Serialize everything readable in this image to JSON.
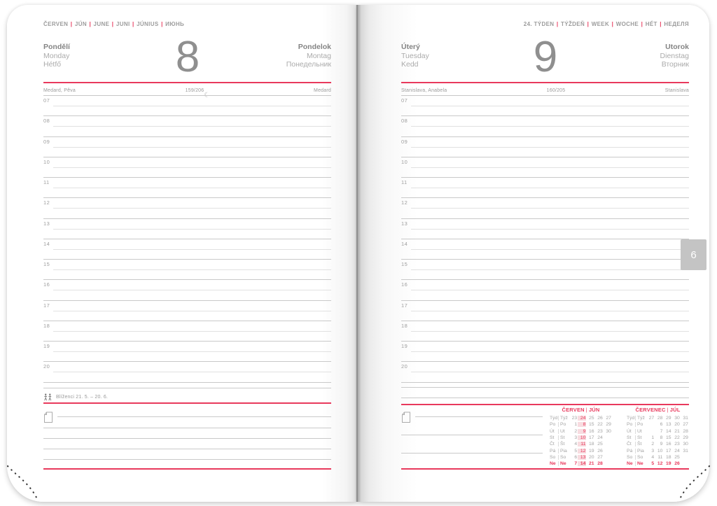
{
  "colors": {
    "accent": "#e8395c",
    "calendar_highlight_bg": "#f8dce0",
    "tab_bg": "#c4c4c4"
  },
  "page_tab": {
    "label": "6"
  },
  "left_page": {
    "months": [
      "ČERVEN",
      "JÚN",
      "JUNE",
      "JUNI",
      "JÚNIUS",
      "ИЮНЬ"
    ],
    "day": {
      "names_left": [
        "Pondělí",
        "Monday",
        "Hétfő"
      ],
      "number": "8",
      "moon_symbol": "☾",
      "names_right": [
        "Pondelok",
        "Montag",
        "Понедельник"
      ]
    },
    "nameday": {
      "left": "Medard, Pěva",
      "center": "159/206",
      "right": "Medard"
    },
    "hours": [
      "07",
      "08",
      "09",
      "10",
      "11",
      "12",
      "13",
      "14",
      "15",
      "16",
      "17",
      "18",
      "19",
      "20"
    ],
    "zodiac": {
      "icon": "gemini-twins-icon",
      "label": "Blíženci 21. 5. – 20. 6."
    }
  },
  "right_page": {
    "week_header": [
      "24. TÝDEN",
      "TÝŽDEŇ",
      "WEEK",
      "WOCHE",
      "HÉT",
      "НЕДЕЛЯ"
    ],
    "day": {
      "names_left": [
        "Úterý",
        "Tuesday",
        "Kedd"
      ],
      "number": "9",
      "names_right": [
        "Utorok",
        "Dienstag",
        "Вторник"
      ]
    },
    "nameday": {
      "left": "Stanislava, Anabela",
      "center": "160/205",
      "right": "Stanislava"
    },
    "hours": [
      "07",
      "08",
      "09",
      "10",
      "11",
      "12",
      "13",
      "14",
      "15",
      "16",
      "17",
      "18",
      "19",
      "20"
    ],
    "calendars": [
      {
        "title": [
          "ČERVEN",
          "JÚN"
        ],
        "row_labels": [
          [
            "Týd",
            "Týž"
          ],
          [
            "Po",
            "Po"
          ],
          [
            "Út",
            "Ut"
          ],
          [
            "St",
            "St"
          ],
          [
            "Čt",
            "Št"
          ],
          [
            "Pá",
            "Pia"
          ],
          [
            "So",
            "So"
          ],
          [
            "Ne",
            "Ne"
          ]
        ],
        "rows": [
          [
            "23",
            "24",
            "25",
            "26",
            "27"
          ],
          [
            "1",
            "8",
            "15",
            "22",
            "29"
          ],
          [
            "2",
            "9",
            "16",
            "23",
            "30"
          ],
          [
            "3",
            "10",
            "17",
            "24",
            ""
          ],
          [
            "4",
            "11",
            "18",
            "25",
            ""
          ],
          [
            "5",
            "12",
            "19",
            "26",
            ""
          ],
          [
            "6",
            "13",
            "20",
            "27",
            ""
          ],
          [
            "7",
            "14",
            "21",
            "28",
            ""
          ]
        ],
        "highlight_col": 1,
        "sunday_row": 7
      },
      {
        "title": [
          "ČERVENEC",
          "JÚL"
        ],
        "row_labels": [
          [
            "Týd",
            "Týž"
          ],
          [
            "Po",
            "Po"
          ],
          [
            "Út",
            "Ut"
          ],
          [
            "St",
            "St"
          ],
          [
            "Čt",
            "Št"
          ],
          [
            "Pá",
            "Pia"
          ],
          [
            "So",
            "So"
          ],
          [
            "Ne",
            "Ne"
          ]
        ],
        "rows": [
          [
            "27",
            "28",
            "29",
            "30",
            "31"
          ],
          [
            "",
            "6",
            "13",
            "20",
            "27"
          ],
          [
            "",
            "7",
            "14",
            "21",
            "28"
          ],
          [
            "1",
            "8",
            "15",
            "22",
            "29"
          ],
          [
            "2",
            "9",
            "16",
            "23",
            "30"
          ],
          [
            "3",
            "10",
            "17",
            "24",
            "31"
          ],
          [
            "4",
            "11",
            "18",
            "25",
            ""
          ],
          [
            "5",
            "12",
            "19",
            "26",
            ""
          ]
        ],
        "highlight_col": -1,
        "sunday_row": 7
      }
    ]
  }
}
